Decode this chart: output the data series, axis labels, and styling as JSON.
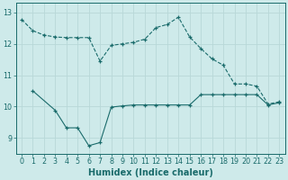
{
  "xlabel": "Humidex (Indice chaleur)",
  "bg_color": "#ceeaea",
  "grid_color": "#b8d8d8",
  "line_color": "#1a6b6b",
  "xlim": [
    -0.5,
    23.5
  ],
  "ylim": [
    8.5,
    13.3
  ],
  "yticks": [
    9,
    10,
    11,
    12,
    13
  ],
  "xticks": [
    0,
    1,
    2,
    3,
    4,
    5,
    6,
    7,
    8,
    9,
    10,
    11,
    12,
    13,
    14,
    15,
    16,
    17,
    18,
    19,
    20,
    21,
    22,
    23
  ],
  "line1_x": [
    0,
    1,
    2,
    3,
    4,
    5,
    6,
    7,
    8,
    9,
    10,
    11,
    12,
    13,
    14,
    15,
    16,
    17,
    18,
    19,
    20,
    21,
    22,
    23
  ],
  "line1_y": [
    12.78,
    12.42,
    12.28,
    12.22,
    12.2,
    12.2,
    12.2,
    11.45,
    11.95,
    12.0,
    12.05,
    12.15,
    12.52,
    12.62,
    12.85,
    12.22,
    11.85,
    11.52,
    11.32,
    10.72,
    10.72,
    10.65,
    10.08,
    10.15
  ],
  "line2_x": [
    1,
    3,
    4,
    5,
    6,
    7,
    8,
    9,
    10,
    11,
    12,
    13,
    14,
    15,
    16,
    17,
    18,
    19,
    20,
    21,
    22,
    23
  ],
  "line2_y": [
    10.5,
    9.88,
    9.32,
    9.32,
    8.75,
    8.85,
    9.98,
    10.02,
    10.05,
    10.05,
    10.05,
    10.05,
    10.05,
    10.05,
    10.38,
    10.38,
    10.38,
    10.38,
    10.38,
    10.38,
    10.05,
    10.12
  ],
  "tick_fontsize": 5.8,
  "label_fontsize": 7.0
}
